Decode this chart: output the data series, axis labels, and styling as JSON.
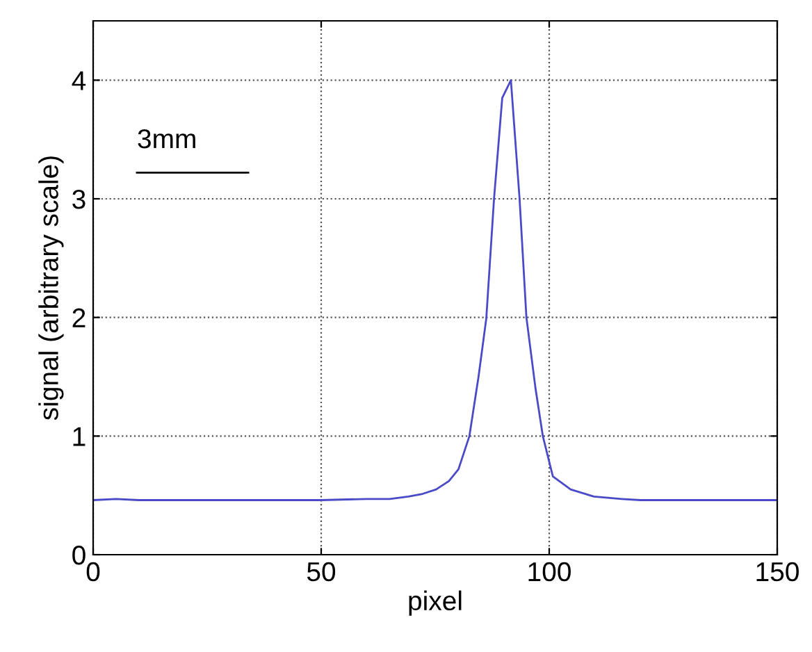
{
  "chart_data": {
    "type": "line",
    "xlabel": "pixel",
    "ylabel": "signal (arbitrary scale)",
    "annotations": [
      "3mm"
    ],
    "series": [
      {
        "color": "#4a4ac8",
        "x": [
          0,
          5,
          10,
          20,
          30,
          40,
          50,
          60,
          65,
          69.1,
          72,
          75.2,
          78,
          80.1,
          82.5,
          84.5,
          86.2,
          87.9,
          89.7,
          91.6,
          93.5,
          95.0,
          97,
          98.6,
          100.8,
          104.7,
          109.8,
          115.9,
          120,
          130,
          140,
          150
        ],
        "values": [
          0.46,
          0.47,
          0.46,
          0.46,
          0.46,
          0.46,
          0.46,
          0.47,
          0.47,
          0.49,
          0.51,
          0.55,
          0.62,
          0.72,
          1.0,
          1.5,
          1.99,
          3.0,
          3.85,
          4.0,
          3.0,
          2.0,
          1.4,
          1.0,
          0.66,
          0.55,
          0.49,
          0.47,
          0.46,
          0.46,
          0.46,
          0.46
        ]
      }
    ],
    "xlim": [
      0,
      150
    ],
    "ylim": [
      0,
      4.5
    ],
    "xticks": [
      0,
      50,
      100,
      150
    ],
    "yticks": [
      0,
      1,
      2,
      3,
      4
    ],
    "grid": true,
    "line_style": "solid",
    "marker": "none"
  }
}
